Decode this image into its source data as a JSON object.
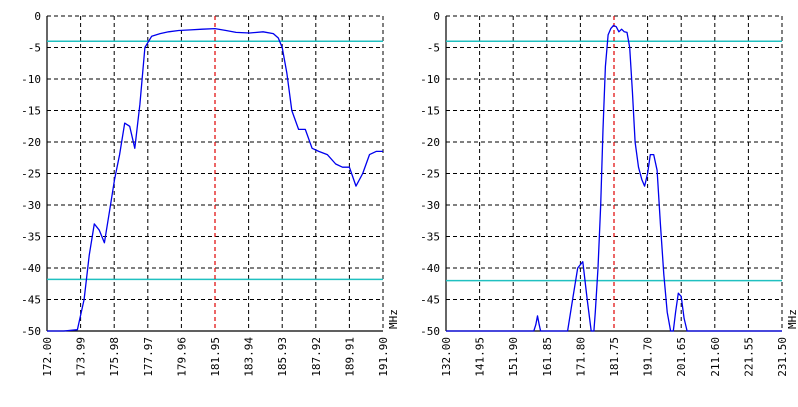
{
  "chart_data": [
    {
      "type": "line",
      "xlabel": "MHz",
      "x_ticks": [
        "172.00",
        "173.99",
        "175.98",
        "177.97",
        "179.96",
        "181.95",
        "183.94",
        "185.93",
        "187.92",
        "189.91",
        "191.90"
      ],
      "xlim": [
        172.0,
        191.9
      ],
      "ylim": [
        -50,
        0
      ],
      "y_ticks": [
        "0",
        "-5",
        "-10",
        "-15",
        "-20",
        "-25",
        "-30",
        "-35",
        "-40",
        "-45",
        "-50"
      ],
      "grid": true,
      "reference_lines": [
        -4,
        -41.8
      ],
      "reference_line_color": "#20c0c0",
      "marker_x": 181.95,
      "marker_color": "#e00000",
      "series_color": "#0000ee",
      "series": [
        {
          "x": [
            172.0,
            173.0,
            173.8,
            174.2,
            174.5,
            174.8,
            175.1,
            175.4,
            175.7,
            176.0,
            176.3,
            176.6,
            176.9,
            177.2,
            177.5,
            177.8,
            178.2,
            178.7,
            179.2,
            179.8,
            180.5,
            181.2,
            181.95,
            182.6,
            183.2,
            184.0,
            184.8,
            185.4,
            185.7,
            185.93,
            186.2,
            186.5,
            186.9,
            187.3,
            187.7,
            188.1,
            188.6,
            189.1,
            189.5,
            189.91,
            190.3,
            190.7,
            191.1,
            191.5,
            191.9
          ],
          "y": [
            -50,
            -50,
            -49.8,
            -45,
            -38,
            -33,
            -34,
            -36,
            -31,
            -26,
            -22,
            -17,
            -17.5,
            -21,
            -14,
            -5,
            -3.2,
            -2.8,
            -2.5,
            -2.3,
            -2.2,
            -2.1,
            -2.0,
            -2.3,
            -2.6,
            -2.7,
            -2.5,
            -2.8,
            -3.5,
            -5,
            -9,
            -15,
            -18,
            -18,
            -21,
            -21.5,
            -22,
            -23.5,
            -24,
            -24,
            -27,
            -25,
            -22,
            -21.5,
            -21.5
          ]
        }
      ]
    },
    {
      "type": "line",
      "xlabel": "MHz",
      "x_ticks": [
        "132.00",
        "141.95",
        "151.90",
        "161.85",
        "171.80",
        "181.75",
        "191.70",
        "201.65",
        "211.60",
        "221.55",
        "231.50"
      ],
      "xlim": [
        132.0,
        231.5
      ],
      "ylim": [
        -50,
        0
      ],
      "y_ticks": [
        "0",
        "-5",
        "-10",
        "-15",
        "-20",
        "-25",
        "-30",
        "-35",
        "-40",
        "-45",
        "-50"
      ],
      "grid": true,
      "reference_lines": [
        -4,
        -42
      ],
      "reference_line_color": "#20c0c0",
      "marker_x": 181.75,
      "marker_color": "#e00000",
      "series_color": "#0000ee",
      "series": [
        {
          "x": [
            132.0,
            140.0,
            150.0,
            158.0,
            158.6,
            159.1,
            159.6,
            160.0,
            165.0,
            168.0,
            169.5,
            171.0,
            172.5,
            173.8,
            175.0,
            175.8,
            176.2,
            177.0,
            177.8,
            178.5,
            179.2,
            180.0,
            180.8,
            181.6,
            182.4,
            183.2,
            184.0,
            184.8,
            185.6,
            186.4,
            187.2,
            188.0,
            189.0,
            190.0,
            190.8,
            191.7,
            192.5,
            193.5,
            194.5,
            195.5,
            196.5,
            197.5,
            198.5,
            199.3,
            200.0,
            200.8,
            201.65,
            202.5,
            203.4,
            204.0,
            210.0,
            220.0,
            231.5
          ],
          "y": [
            -50,
            -50,
            -50,
            -50,
            -49,
            -47.6,
            -49,
            -50,
            -50,
            -50,
            -45,
            -40,
            -39,
            -45,
            -50,
            -50,
            -47,
            -40,
            -30,
            -18,
            -8,
            -3,
            -2,
            -1.5,
            -1.7,
            -2.5,
            -2.1,
            -2.5,
            -2.6,
            -5,
            -12,
            -20,
            -24,
            -26,
            -27,
            -25,
            -22,
            -22,
            -24.5,
            -33,
            -41,
            -47,
            -50,
            -50,
            -47,
            -44,
            -44.5,
            -48,
            -50,
            -50,
            -50,
            -50,
            -50
          ]
        }
      ]
    }
  ]
}
